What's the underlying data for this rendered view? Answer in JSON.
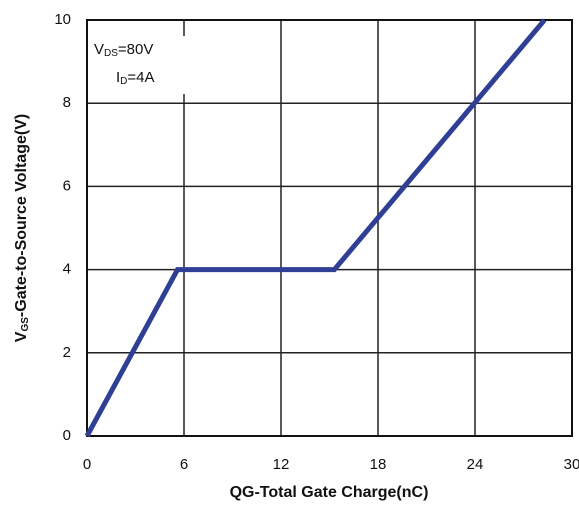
{
  "chart_data": {
    "type": "line",
    "x": [
      0,
      5.6,
      15.3,
      28.3
    ],
    "series": [
      {
        "name": "VGS",
        "color": "#2f3f95",
        "values": [
          0,
          4,
          4,
          10
        ]
      }
    ],
    "xlim": [
      0,
      30
    ],
    "xticks": [
      0,
      6,
      12,
      18,
      24,
      30
    ],
    "ylim": [
      0,
      10
    ],
    "yticks": [
      0,
      2,
      4,
      6,
      8,
      10
    ],
    "grid": true,
    "xlabel": "QG-Total Gate Charge(nC)",
    "ylabel": {
      "main": "V",
      "sub": "GS",
      "rest": "-Gate-to-Source Voltage(V)"
    },
    "annotations": [
      {
        "main": "V",
        "sub": "DS",
        "rest": "=80V"
      },
      {
        "main": "I",
        "sub": "D",
        "rest": "=4A"
      }
    ]
  }
}
